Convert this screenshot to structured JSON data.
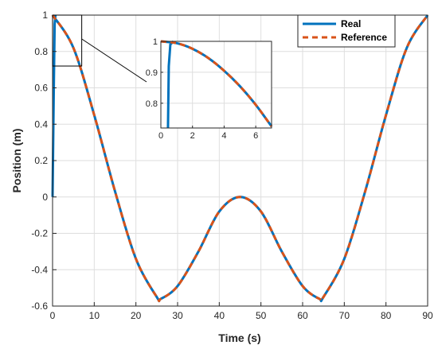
{
  "chart_data": {
    "type": "line",
    "title": "",
    "xlabel": "Time (s)",
    "ylabel": "Position (m)",
    "xlim": [
      0,
      90
    ],
    "ylim": [
      -0.6,
      1
    ],
    "xticks": [
      0,
      10,
      20,
      30,
      40,
      50,
      60,
      70,
      80,
      90
    ],
    "yticks": [
      -0.6,
      -0.4,
      -0.2,
      0,
      0.2,
      0.4,
      0.6,
      0.8,
      1
    ],
    "grid": true,
    "legend_position": "top-right",
    "x": [
      0,
      5,
      10,
      15,
      20,
      25,
      26,
      30,
      35,
      40,
      45,
      50,
      55,
      60,
      64,
      65,
      70,
      75,
      80,
      85,
      90
    ],
    "series": [
      {
        "name": "Real",
        "color": "#0072BD",
        "style": "solid",
        "startup": {
          "x": [
            0,
            0.3,
            0.5,
            0.7
          ],
          "y": [
            0,
            0.6,
            0.95,
            1.0
          ]
        },
        "values": [
          1.0,
          0.82,
          0.45,
          0.03,
          -0.34,
          -0.55,
          -0.56,
          -0.49,
          -0.3,
          -0.08,
          0.0,
          -0.08,
          -0.3,
          -0.49,
          -0.56,
          -0.55,
          -0.34,
          0.03,
          0.45,
          0.82,
          1.0
        ]
      },
      {
        "name": "Reference",
        "color": "#D95319",
        "style": "dashed",
        "values": [
          1.0,
          0.82,
          0.45,
          0.03,
          -0.34,
          -0.55,
          -0.56,
          -0.49,
          -0.3,
          -0.08,
          0.0,
          -0.08,
          -0.3,
          -0.49,
          -0.56,
          -0.55,
          -0.34,
          0.03,
          0.45,
          0.82,
          1.0
        ]
      }
    ],
    "inset": {
      "xlim": [
        0,
        7
      ],
      "ylim": [
        0.72,
        1.0
      ],
      "xticks": [
        0,
        2,
        4,
        6
      ],
      "yticks": [
        0.8,
        0.9,
        1
      ],
      "zoom_region": {
        "x": [
          0,
          7
        ],
        "y": [
          0.72,
          1.0
        ]
      },
      "x": [
        0,
        1,
        2,
        3,
        4,
        5,
        6,
        7
      ],
      "values": [
        1.0,
        0.994,
        0.976,
        0.946,
        0.905,
        0.855,
        0.795,
        0.725
      ],
      "real_startup": {
        "x": [
          0.45,
          0.5,
          0.6,
          0.8
        ],
        "y": [
          0.72,
          0.92,
          0.99,
          1.0
        ]
      }
    }
  }
}
